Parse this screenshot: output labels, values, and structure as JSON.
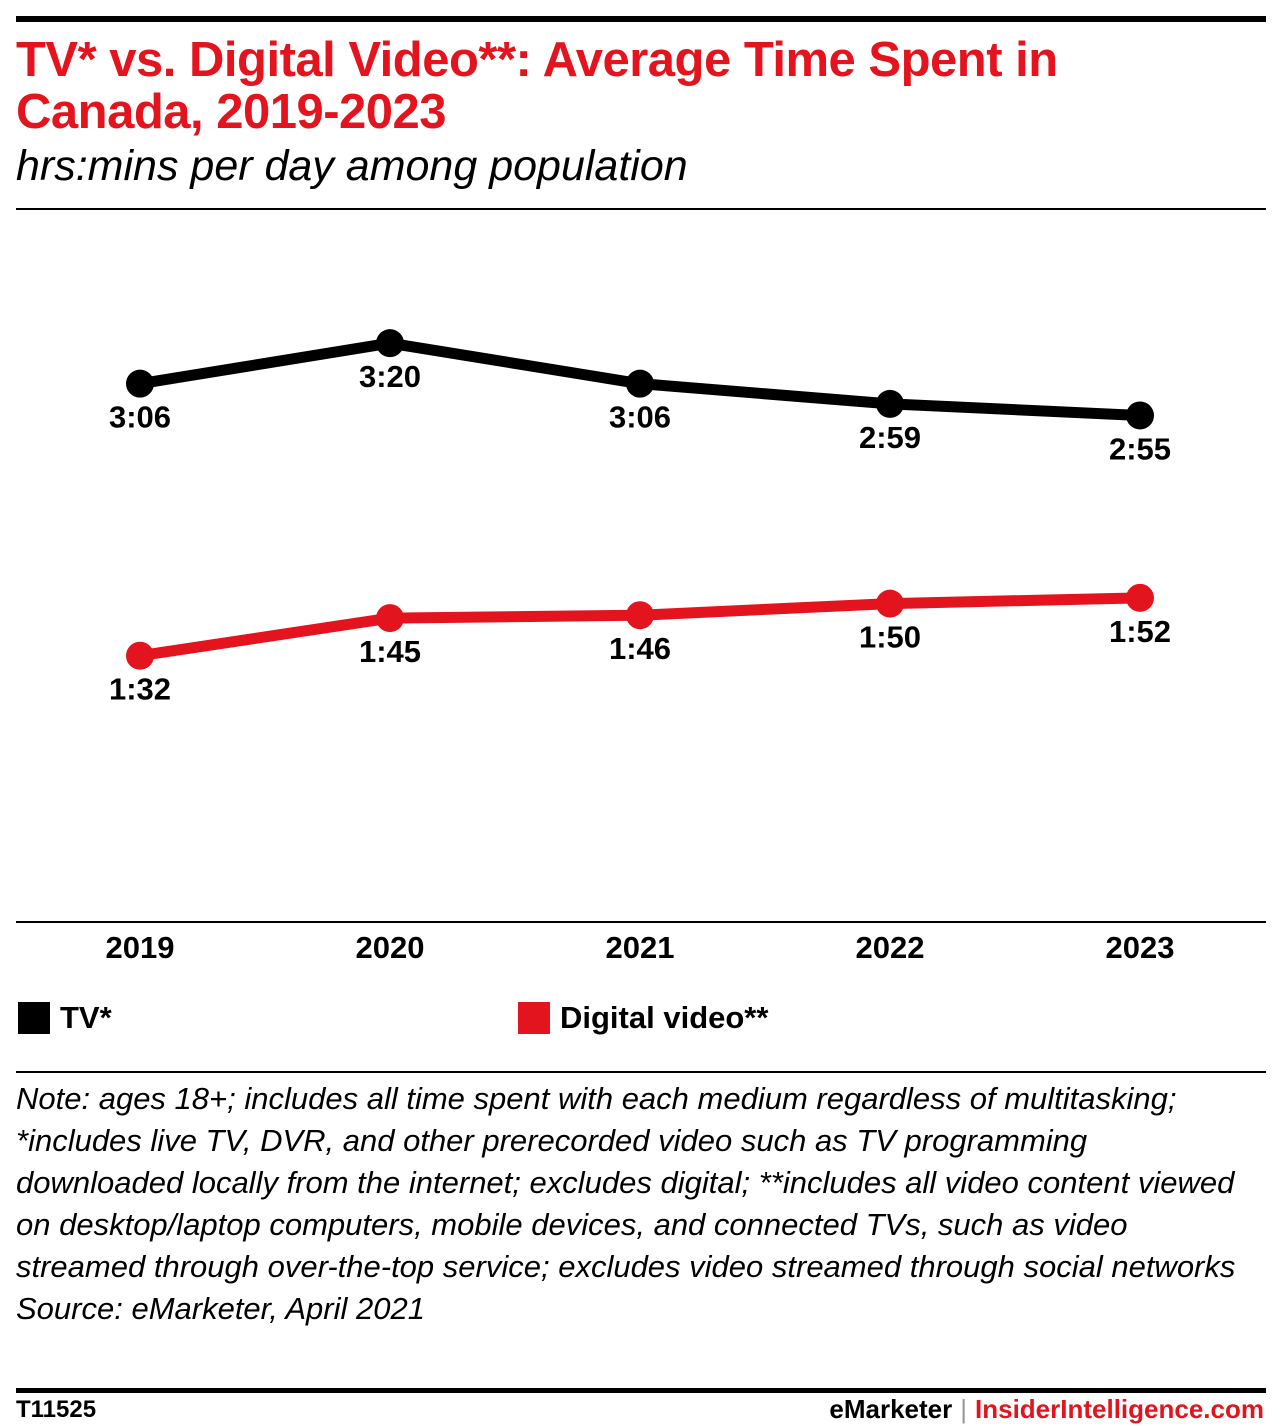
{
  "header": {
    "title": "TV* vs. Digital Video**: Average Time Spent in Canada, 2019-2023",
    "subtitle": "hrs:mins per day among population"
  },
  "chart_data": {
    "type": "line",
    "categories": [
      "2019",
      "2020",
      "2021",
      "2022",
      "2023"
    ],
    "series": [
      {
        "name": "TV*",
        "color": "#000000",
        "values_minutes": [
          186,
          200,
          186,
          179,
          175
        ],
        "labels": [
          "3:06",
          "3:20",
          "3:06",
          "2:59",
          "2:55"
        ]
      },
      {
        "name": "Digital video**",
        "color": "#e3141d",
        "values_minutes": [
          92,
          105,
          106,
          110,
          112
        ],
        "labels": [
          "1:32",
          "1:45",
          "1:46",
          "1:50",
          "1:52"
        ]
      }
    ],
    "y_unit": "hrs:mins per day",
    "ylim_minutes": [
      0,
      246
    ],
    "grid": false,
    "legend_position": "bottom-left"
  },
  "legend": {
    "tv_label": "TV*",
    "digital_label": "Digital video**"
  },
  "footer": {
    "note": "Note: ages 18+; includes all time spent with each medium regardless of multitasking; *includes live TV, DVR, and other prerecorded video such as TV programming downloaded locally from the internet; excludes digital; **includes all video content viewed on desktop/laptop computers, mobile devices, and connected TVs, such as video streamed through over-the-top service; excludes video streamed through social networks",
    "source": "Source: eMarketer, April 2021",
    "chart_id": "T11525",
    "brand_1": "eMarketer",
    "brand_separator": "|",
    "brand_2": "InsiderIntelligence.com"
  },
  "colors": {
    "accent": "#e3141d",
    "tv": "#000000"
  }
}
